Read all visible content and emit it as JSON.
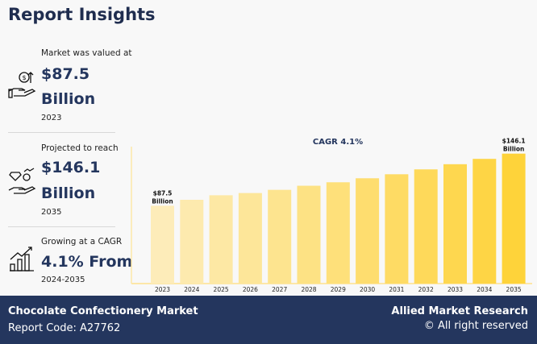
{
  "title": "Report Insights",
  "stats": [
    {
      "label": "Market was valued at",
      "value1": "$87.5",
      "value2": "Billion",
      "sub": "2023",
      "icon": "hand-dollar-growth-icon"
    },
    {
      "label": "Projected to reach",
      "value1": "$146.1",
      "value2": "Billion",
      "sub": "2035",
      "icon": "hand-diamond-dollar-icon"
    },
    {
      "label": "Growing at a CAGR",
      "value1": "4.1% From",
      "sub": "2024-2035",
      "icon": "bar-chart-growth-icon"
    }
  ],
  "chart_data": {
    "type": "bar",
    "title": "CAGR 4.1%",
    "categories": [
      "2023",
      "2024",
      "2025",
      "2026",
      "2027",
      "2028",
      "2029",
      "2030",
      "2031",
      "2032",
      "2033",
      "2034",
      "2035"
    ],
    "values": [
      87.5,
      94.2,
      99.3,
      101.8,
      105.4,
      110.0,
      113.9,
      118.4,
      122.9,
      128.4,
      134.2,
      140.2,
      146.1
    ],
    "annotations": [
      {
        "category": "2023",
        "line1": "$87.5",
        "line2": "Billion"
      },
      {
        "category": "2035",
        "line1": "$146.1",
        "line2": "Billion"
      }
    ],
    "ylim": [
      0,
      160
    ],
    "colors": {
      "start": "#fdecb9",
      "end": "#fed33a",
      "axis": "#fde7a8"
    },
    "grid": false
  },
  "footer": {
    "market": "Chocolate Confectionery Market",
    "code": "Report Code: A27762",
    "brand": "Allied Market Research",
    "rights": "© All right reserved"
  }
}
